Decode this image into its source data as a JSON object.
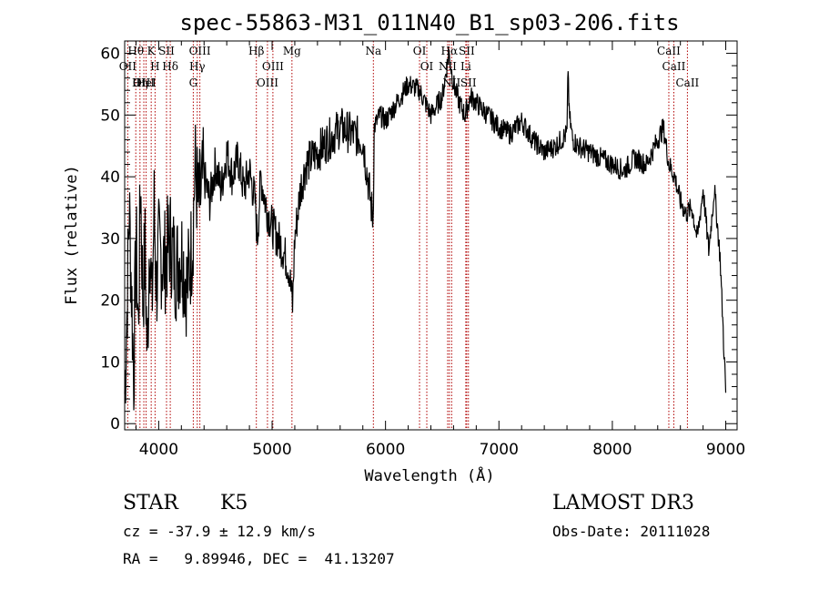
{
  "chart_data": {
    "type": "line",
    "title": "spec-55863-M31_011N40_B1_sp03-206.fits",
    "xlabel": "Wavelength (Å)",
    "ylabel": "Flux (relative)",
    "xlim": [
      3700,
      9100
    ],
    "ylim": [
      -1,
      62
    ],
    "xticks": [
      4000,
      5000,
      6000,
      7000,
      8000,
      9000
    ],
    "yticks": [
      0,
      10,
      20,
      30,
      40,
      50,
      60
    ],
    "series": [
      {
        "name": "spectrum",
        "x": [
          3700,
          3720,
          3740,
          3760,
          3780,
          3800,
          3820,
          3840,
          3860,
          3880,
          3900,
          3920,
          3940,
          3960,
          3980,
          4000,
          4050,
          4100,
          4150,
          4200,
          4250,
          4300,
          4320,
          4350,
          4400,
          4450,
          4500,
          4550,
          4600,
          4650,
          4700,
          4750,
          4800,
          4850,
          4870,
          4900,
          4950,
          5000,
          5050,
          5100,
          5150,
          5180,
          5200,
          5250,
          5300,
          5400,
          5500,
          5600,
          5700,
          5800,
          5890,
          5900,
          5950,
          6000,
          6100,
          6200,
          6300,
          6400,
          6500,
          6560,
          6600,
          6650,
          6700,
          6750,
          6800,
          6900,
          7000,
          7100,
          7200,
          7300,
          7400,
          7500,
          7600,
          7610,
          7620,
          7650,
          7700,
          7800,
          7900,
          8000,
          8100,
          8200,
          8300,
          8400,
          8450,
          8500,
          8550,
          8600,
          8650,
          8700,
          8750,
          8800,
          8850,
          8900,
          8950,
          9000
        ],
        "y": [
          5,
          18,
          35,
          22,
          8,
          30,
          15,
          40,
          20,
          28,
          10,
          32,
          18,
          35,
          22,
          28,
          26,
          30,
          25,
          28,
          22,
          30,
          42,
          35,
          40,
          36,
          42,
          38,
          44,
          40,
          43,
          38,
          41,
          36,
          30,
          40,
          35,
          32,
          30,
          28,
          25,
          19,
          30,
          38,
          42,
          44,
          46,
          48,
          47,
          46,
          33,
          48,
          50,
          49,
          52,
          55,
          54,
          50,
          53,
          60,
          55,
          52,
          50,
          53,
          52,
          50,
          48,
          47,
          49,
          46,
          44,
          45,
          47,
          58,
          50,
          46,
          45,
          44,
          43,
          42,
          41,
          43,
          42,
          46,
          48,
          42,
          40,
          36,
          34,
          35,
          30,
          38,
          28,
          38,
          27,
          5
        ]
      }
    ],
    "spectral_lines": [
      {
        "name": "Hθ",
        "x": 3798
      },
      {
        "name": "OII",
        "x": 3727
      },
      {
        "name": "OIII",
        "x": 3869
      },
      {
        "name": "K",
        "x": 3934
      },
      {
        "name": "HeI",
        "x": 3889
      },
      {
        "name": "Hη",
        "x": 3835
      },
      {
        "name": "H",
        "x": 3968
      },
      {
        "name": "SII",
        "x": 4069
      },
      {
        "name": "Hδ",
        "x": 4102
      },
      {
        "name": "OIII",
        "x": 4363
      },
      {
        "name": "Hγ",
        "x": 4340
      },
      {
        "name": "G",
        "x": 4305
      },
      {
        "name": "Hβ",
        "x": 4861
      },
      {
        "name": "OIII",
        "x": 5007
      },
      {
        "name": "OIII",
        "x": 4959
      },
      {
        "name": "Mg",
        "x": 5175
      },
      {
        "name": "Na",
        "x": 5893
      },
      {
        "name": "OI",
        "x": 6300
      },
      {
        "name": "OI",
        "x": 6364
      },
      {
        "name": "Hα",
        "x": 6563
      },
      {
        "name": "SII",
        "x": 6716
      },
      {
        "name": "NII",
        "x": 6548
      },
      {
        "name": "NII",
        "x": 6583
      },
      {
        "name": "Li",
        "x": 6708
      },
      {
        "name": "SII",
        "x": 6731
      },
      {
        "name": "CaII",
        "x": 8498
      },
      {
        "name": "CaII",
        "x": 8542
      },
      {
        "name": "CaII",
        "x": 8662
      }
    ]
  },
  "info": {
    "class_label": "STAR",
    "subclass": "K5",
    "survey": "LAMOST DR3",
    "cz": "cz = -37.9 ± 12.9 km/s",
    "obs_date": "Obs-Date: 20111028",
    "radec": "RA =   9.89946, DEC =  41.13207"
  }
}
